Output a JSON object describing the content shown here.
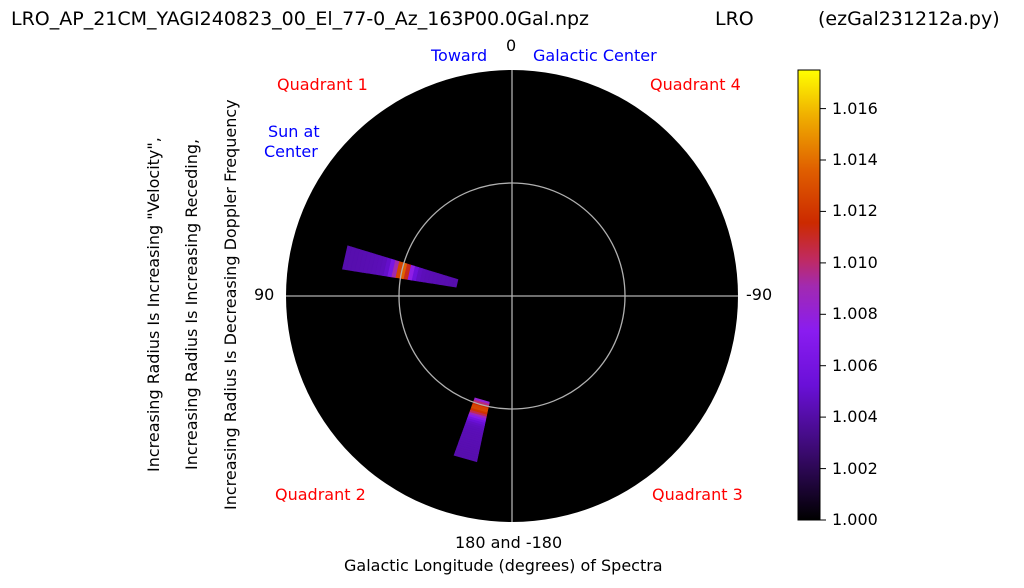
{
  "header": {
    "filename": "LRO_AP_21CM_YAGI240823_00_El_77-0_Az_163P00.0Gal.npz",
    "station": "LRO",
    "program": "(ezGal231212a.py)"
  },
  "chart_data": {
    "type": "heatmap",
    "projection": "polar",
    "xlabel": "Galactic Longitude (degrees) of Spectra",
    "ylabel_lines": [
      "Increasing Radius Is Increasing \"Velocity\",",
      "Increasing Radius Is Increasing Receding,",
      "Increasing Radius Is Decreasing Doppler Frequency"
    ],
    "angle_labels": {
      "top": "0",
      "left": "90",
      "right": "-90",
      "bottom": "180 and -180"
    },
    "annotations": {
      "toward": "Toward",
      "galactic_center": "Galactic Center",
      "sun_line1": "Sun at",
      "sun_line2": "Center",
      "quadrant1": "Quadrant 1",
      "quadrant2": "Quadrant 2",
      "quadrant3": "Quadrant 3",
      "quadrant4": "Quadrant 4"
    },
    "colormap": "gnuplot",
    "colorbar": {
      "min": 1.0,
      "max": 1.0175,
      "ticks": [
        "1.000",
        "1.002",
        "1.004",
        "1.006",
        "1.008",
        "1.010",
        "1.012",
        "1.014",
        "1.016"
      ]
    },
    "wedges": [
      {
        "longitude_from": 73,
        "longitude_to": 81,
        "radius_from": 0.25,
        "radius_to": 0.76,
        "peak_radius": 0.5,
        "peak_value": 1.013
      },
      {
        "longitude_from": 160,
        "longitude_to": 168,
        "radius_from": 0.48,
        "radius_to": 0.75,
        "peak_radius": 0.52,
        "peak_value": 1.012
      }
    ],
    "grid": true
  }
}
